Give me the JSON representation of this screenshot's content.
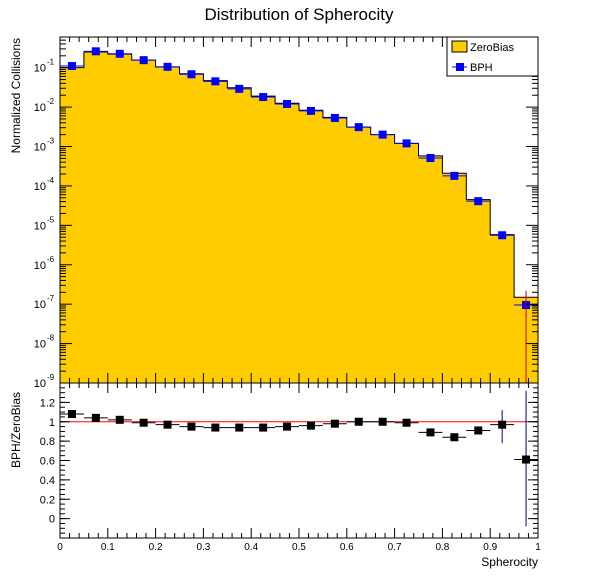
{
  "chart_data": [
    {
      "type": "bar",
      "title": "Distribution of Spherocity",
      "ylabel": "Normalized Collisions",
      "xlabel": "",
      "yscale": "log",
      "ylim": [
        1e-09,
        0.6
      ],
      "xlim": [
        0,
        1
      ],
      "legend_placement": "top-right",
      "x_bin_edges": [
        0,
        0.05,
        0.1,
        0.15,
        0.2,
        0.25,
        0.3,
        0.35,
        0.4,
        0.45,
        0.5,
        0.55,
        0.6,
        0.65,
        0.7,
        0.75,
        0.8,
        0.85,
        0.9,
        0.95,
        1.0
      ],
      "x_bin_centers": [
        0.025,
        0.075,
        0.125,
        0.175,
        0.225,
        0.275,
        0.325,
        0.375,
        0.425,
        0.475,
        0.525,
        0.575,
        0.625,
        0.675,
        0.725,
        0.775,
        0.825,
        0.875,
        0.925,
        0.975
      ],
      "y_ticks": [
        {
          "value": 1e-09,
          "label": "10",
          "exp": "-9"
        },
        {
          "value": 1e-08,
          "label": "10",
          "exp": "-8"
        },
        {
          "value": 1e-07,
          "label": "10",
          "exp": "-7"
        },
        {
          "value": 1e-06,
          "label": "10",
          "exp": "-6"
        },
        {
          "value": 1e-05,
          "label": "10",
          "exp": "-5"
        },
        {
          "value": 0.0001,
          "label": "10",
          "exp": "-4"
        },
        {
          "value": 0.001,
          "label": "10",
          "exp": "-3"
        },
        {
          "value": 0.01,
          "label": "10",
          "exp": "-2"
        },
        {
          "value": 0.1,
          "label": "10",
          "exp": "-1"
        }
      ],
      "series": [
        {
          "name": "ZeroBias",
          "style": "filled-histogram",
          "fill_color": "#ffcc00",
          "line_color": "#cc0000",
          "values": [
            0.1,
            0.25,
            0.22,
            0.155,
            0.105,
            0.07,
            0.047,
            0.031,
            0.019,
            0.0125,
            0.0083,
            0.0055,
            0.0031,
            0.002,
            0.0012,
            0.00058,
            0.00021,
            4.5e-05,
            5.8e-06,
            1.5e-07
          ]
        },
        {
          "name": "BPH",
          "style": "markers",
          "marker_color": "#0000ff",
          "values": [
            0.11,
            0.26,
            0.225,
            0.155,
            0.105,
            0.068,
            0.045,
            0.029,
            0.018,
            0.012,
            0.008,
            0.0053,
            0.0031,
            0.002,
            0.0012,
            0.00051,
            0.00018,
            4.1e-05,
            5.6e-06,
            9.5e-08
          ],
          "error_bar": {
            "bin_index": 19,
            "low": 1e-09,
            "high": 2.2e-07
          }
        }
      ]
    },
    {
      "type": "scatter",
      "title": "",
      "ylabel": "BPH/ZeroBias",
      "xlabel": "Spherocity",
      "ylim": [
        -0.2,
        1.4
      ],
      "xlim": [
        0,
        1
      ],
      "reference_line": {
        "value": 1.0,
        "color": "#ff0000"
      },
      "x_ticks": [
        {
          "value": 0,
          "label": "0"
        },
        {
          "value": 0.1,
          "label": "0.1"
        },
        {
          "value": 0.2,
          "label": "0.2"
        },
        {
          "value": 0.3,
          "label": "0.3"
        },
        {
          "value": 0.4,
          "label": "0.4"
        },
        {
          "value": 0.5,
          "label": "0.5"
        },
        {
          "value": 0.6,
          "label": "0.6"
        },
        {
          "value": 0.7,
          "label": "0.7"
        },
        {
          "value": 0.8,
          "label": "0.8"
        },
        {
          "value": 0.9,
          "label": "0.9"
        },
        {
          "value": 1.0,
          "label": "1"
        }
      ],
      "y_ticks": [
        {
          "value": 0,
          "label": "0"
        },
        {
          "value": 0.2,
          "label": "0.2"
        },
        {
          "value": 0.4,
          "label": "0.4"
        },
        {
          "value": 0.6,
          "label": "0.6"
        },
        {
          "value": 0.8,
          "label": "0.8"
        },
        {
          "value": 1.0,
          "label": "1"
        },
        {
          "value": 1.2,
          "label": "1.2"
        }
      ],
      "x": [
        0.025,
        0.075,
        0.125,
        0.175,
        0.225,
        0.275,
        0.325,
        0.375,
        0.425,
        0.475,
        0.525,
        0.575,
        0.625,
        0.675,
        0.725,
        0.775,
        0.825,
        0.875,
        0.925,
        0.975
      ],
      "values": [
        1.08,
        1.04,
        1.02,
        0.99,
        0.97,
        0.95,
        0.94,
        0.94,
        0.94,
        0.95,
        0.96,
        0.98,
        1.0,
        1.0,
        0.99,
        0.89,
        0.84,
        0.91,
        0.97,
        0.61
      ],
      "error_bars": [
        {
          "bin_index": 18,
          "low": 0.78,
          "high": 1.12
        },
        {
          "bin_index": 19,
          "low": -0.08,
          "high": 1.32
        }
      ],
      "marker_color": "#000000",
      "error_color": "#000088"
    }
  ]
}
